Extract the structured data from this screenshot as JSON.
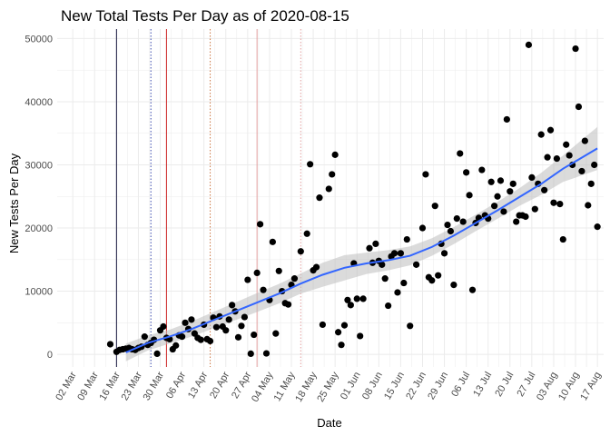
{
  "chart_data": {
    "type": "scatter",
    "title": "New Total Tests Per Day as of 2020-08-15",
    "xlabel": "Date",
    "ylabel": "New Tests Per Day",
    "x_tick_labels": [
      "02 Mar",
      "09 Mar",
      "16 Mar",
      "23 Mar",
      "30 Mar",
      "06 Apr",
      "13 Apr",
      "20 Apr",
      "27 Apr",
      "04 May",
      "11 May",
      "18 May",
      "25 May",
      "01 Jun",
      "08 Jun",
      "15 Jun",
      "22 Jun",
      "29 Jun",
      "06 Jul",
      "13 Jul",
      "20 Jul",
      "27 Jul",
      "03 Aug",
      "10 Aug",
      "17 Aug"
    ],
    "x_tick_dates": [
      "2020-03-02",
      "2020-03-09",
      "2020-03-16",
      "2020-03-23",
      "2020-03-30",
      "2020-04-06",
      "2020-04-13",
      "2020-04-20",
      "2020-04-27",
      "2020-05-04",
      "2020-05-11",
      "2020-05-18",
      "2020-05-25",
      "2020-06-01",
      "2020-06-08",
      "2020-06-15",
      "2020-06-22",
      "2020-06-29",
      "2020-07-06",
      "2020-07-13",
      "2020-07-20",
      "2020-07-27",
      "2020-08-03",
      "2020-08-10",
      "2020-08-17"
    ],
    "y_ticks": [
      0,
      10000,
      20000,
      30000,
      40000,
      50000
    ],
    "xlim": [
      "2020-02-26",
      "2020-08-19"
    ],
    "ylim": [
      -2000,
      51500
    ],
    "grid": true,
    "colors": {
      "points": "#000000",
      "smooth_line": "#3366ff",
      "ribbon": "#bebebe",
      "grid": "#ebebeb"
    },
    "vlines": [
      {
        "date": "2020-03-16",
        "color": "#1a1a40",
        "style": "solid"
      },
      {
        "date": "2020-03-27",
        "color": "#3344aa",
        "style": "dotted"
      },
      {
        "date": "2020-04-01",
        "color": "#cc2222",
        "style": "solid"
      },
      {
        "date": "2020-04-15",
        "color": "#cc7744",
        "style": "dotted"
      },
      {
        "date": "2020-04-30",
        "color": "#e3a0a0",
        "style": "solid"
      },
      {
        "date": "2020-05-14",
        "color": "#e3a0a0",
        "style": "dotted"
      }
    ],
    "points": [
      [
        "2020-03-14",
        1600
      ],
      [
        "2020-03-16",
        400
      ],
      [
        "2020-03-17",
        700
      ],
      [
        "2020-03-18",
        800
      ],
      [
        "2020-03-19",
        900
      ],
      [
        "2020-03-20",
        1000
      ],
      [
        "2020-03-21",
        800
      ],
      [
        "2020-03-22",
        700
      ],
      [
        "2020-03-23",
        1000
      ],
      [
        "2020-03-24",
        1200
      ],
      [
        "2020-03-25",
        2800
      ],
      [
        "2020-03-26",
        1500
      ],
      [
        "2020-03-27",
        1800
      ],
      [
        "2020-03-28",
        2300
      ],
      [
        "2020-03-29",
        100
      ],
      [
        "2020-03-30",
        3800
      ],
      [
        "2020-03-31",
        4400
      ],
      [
        "2020-04-01",
        2600
      ],
      [
        "2020-04-02",
        2400
      ],
      [
        "2020-04-03",
        800
      ],
      [
        "2020-04-04",
        1400
      ],
      [
        "2020-04-05",
        3000
      ],
      [
        "2020-04-06",
        2800
      ],
      [
        "2020-04-07",
        5000
      ],
      [
        "2020-04-08",
        4000
      ],
      [
        "2020-04-09",
        5500
      ],
      [
        "2020-04-10",
        3300
      ],
      [
        "2020-04-11",
        2600
      ],
      [
        "2020-04-12",
        2300
      ],
      [
        "2020-04-13",
        4700
      ],
      [
        "2020-04-14",
        2400
      ],
      [
        "2020-04-15",
        2100
      ],
      [
        "2020-04-16",
        5800
      ],
      [
        "2020-04-17",
        4300
      ],
      [
        "2020-04-18",
        6000
      ],
      [
        "2020-04-19",
        4400
      ],
      [
        "2020-04-20",
        3800
      ],
      [
        "2020-04-21",
        5500
      ],
      [
        "2020-04-22",
        7800
      ],
      [
        "2020-04-23",
        6800
      ],
      [
        "2020-04-24",
        2700
      ],
      [
        "2020-04-25",
        4500
      ],
      [
        "2020-04-26",
        5900
      ],
      [
        "2020-04-27",
        11800
      ],
      [
        "2020-04-28",
        100
      ],
      [
        "2020-04-29",
        3100
      ],
      [
        "2020-04-30",
        12900
      ],
      [
        "2020-05-01",
        20600
      ],
      [
        "2020-05-02",
        10200
      ],
      [
        "2020-05-03",
        150
      ],
      [
        "2020-05-04",
        8600
      ],
      [
        "2020-05-05",
        17800
      ],
      [
        "2020-05-06",
        3300
      ],
      [
        "2020-05-07",
        13200
      ],
      [
        "2020-05-08",
        10000
      ],
      [
        "2020-05-09",
        8100
      ],
      [
        "2020-05-10",
        7900
      ],
      [
        "2020-05-11",
        11000
      ],
      [
        "2020-05-12",
        12000
      ],
      [
        "2020-05-14",
        16300
      ],
      [
        "2020-05-16",
        19100
      ],
      [
        "2020-05-17",
        30100
      ],
      [
        "2020-05-18",
        13300
      ],
      [
        "2020-05-19",
        13800
      ],
      [
        "2020-05-20",
        24800
      ],
      [
        "2020-05-21",
        4700
      ],
      [
        "2020-05-23",
        26200
      ],
      [
        "2020-05-24",
        28500
      ],
      [
        "2020-05-25",
        31600
      ],
      [
        "2020-05-26",
        3500
      ],
      [
        "2020-05-27",
        1500
      ],
      [
        "2020-05-28",
        4600
      ],
      [
        "2020-05-29",
        8600
      ],
      [
        "2020-05-30",
        7800
      ],
      [
        "2020-05-31",
        14400
      ],
      [
        "2020-06-01",
        8800
      ],
      [
        "2020-06-02",
        2900
      ],
      [
        "2020-06-03",
        8800
      ],
      [
        "2020-06-05",
        16800
      ],
      [
        "2020-06-06",
        14500
      ],
      [
        "2020-06-07",
        17500
      ],
      [
        "2020-06-08",
        14800
      ],
      [
        "2020-06-09",
        14200
      ],
      [
        "2020-06-10",
        12000
      ],
      [
        "2020-06-11",
        7700
      ],
      [
        "2020-06-12",
        15500
      ],
      [
        "2020-06-13",
        16000
      ],
      [
        "2020-06-14",
        9800
      ],
      [
        "2020-06-15",
        16000
      ],
      [
        "2020-06-16",
        11300
      ],
      [
        "2020-06-17",
        18200
      ],
      [
        "2020-06-18",
        4500
      ],
      [
        "2020-06-20",
        14200
      ],
      [
        "2020-06-22",
        20000
      ],
      [
        "2020-06-23",
        28500
      ],
      [
        "2020-06-24",
        12200
      ],
      [
        "2020-06-25",
        11700
      ],
      [
        "2020-06-26",
        23500
      ],
      [
        "2020-06-27",
        12500
      ],
      [
        "2020-06-28",
        17500
      ],
      [
        "2020-06-29",
        16000
      ],
      [
        "2020-06-30",
        20500
      ],
      [
        "2020-07-01",
        19500
      ],
      [
        "2020-07-02",
        11000
      ],
      [
        "2020-07-03",
        21500
      ],
      [
        "2020-07-04",
        31800
      ],
      [
        "2020-07-05",
        21000
      ],
      [
        "2020-07-06",
        28800
      ],
      [
        "2020-07-07",
        25200
      ],
      [
        "2020-07-08",
        10200
      ],
      [
        "2020-07-09",
        20800
      ],
      [
        "2020-07-10",
        21600
      ],
      [
        "2020-07-11",
        29200
      ],
      [
        "2020-07-12",
        22000
      ],
      [
        "2020-07-13",
        21500
      ],
      [
        "2020-07-14",
        27300
      ],
      [
        "2020-07-15",
        23500
      ],
      [
        "2020-07-16",
        25000
      ],
      [
        "2020-07-17",
        27500
      ],
      [
        "2020-07-18",
        22600
      ],
      [
        "2020-07-19",
        37200
      ],
      [
        "2020-07-20",
        25800
      ],
      [
        "2020-07-21",
        27000
      ],
      [
        "2020-07-22",
        21000
      ],
      [
        "2020-07-23",
        22000
      ],
      [
        "2020-07-24",
        22000
      ],
      [
        "2020-07-25",
        21800
      ],
      [
        "2020-07-26",
        49000
      ],
      [
        "2020-07-27",
        28000
      ],
      [
        "2020-07-28",
        23000
      ],
      [
        "2020-07-29",
        27000
      ],
      [
        "2020-07-30",
        34800
      ],
      [
        "2020-07-31",
        26000
      ],
      [
        "2020-08-01",
        31200
      ],
      [
        "2020-08-02",
        35500
      ],
      [
        "2020-08-03",
        24000
      ],
      [
        "2020-08-04",
        31000
      ],
      [
        "2020-08-05",
        23800
      ],
      [
        "2020-08-06",
        18200
      ],
      [
        "2020-08-07",
        33200
      ],
      [
        "2020-08-08",
        31500
      ],
      [
        "2020-08-09",
        30000
      ],
      [
        "2020-08-10",
        48400
      ],
      [
        "2020-08-11",
        39200
      ],
      [
        "2020-08-12",
        29000
      ],
      [
        "2020-08-13",
        33800
      ],
      [
        "2020-08-14",
        23600
      ],
      [
        "2020-08-15",
        27000
      ],
      [
        "2020-08-16",
        30000
      ],
      [
        "2020-08-17",
        20200
      ]
    ],
    "smooth_line": [
      [
        "2020-03-19",
        300
      ],
      [
        "2020-03-26",
        1800
      ],
      [
        "2020-04-02",
        2800
      ],
      [
        "2020-04-09",
        4000
      ],
      [
        "2020-04-16",
        5400
      ],
      [
        "2020-04-23",
        6800
      ],
      [
        "2020-04-30",
        8200
      ],
      [
        "2020-05-07",
        9600
      ],
      [
        "2020-05-14",
        11200
      ],
      [
        "2020-05-21",
        12600
      ],
      [
        "2020-05-28",
        13700
      ],
      [
        "2020-06-04",
        14400
      ],
      [
        "2020-06-11",
        14900
      ],
      [
        "2020-06-18",
        15600
      ],
      [
        "2020-06-25",
        17000
      ],
      [
        "2020-07-02",
        18800
      ],
      [
        "2020-07-09",
        20800
      ],
      [
        "2020-07-16",
        22800
      ],
      [
        "2020-07-23",
        24900
      ],
      [
        "2020-07-30",
        27000
      ],
      [
        "2020-08-06",
        29400
      ],
      [
        "2020-08-17",
        32600
      ]
    ],
    "ribbon_halfwidth": [
      [
        "2020-03-19",
        1400
      ],
      [
        "2020-03-26",
        1200
      ],
      [
        "2020-04-02",
        1100
      ],
      [
        "2020-04-16",
        1300
      ],
      [
        "2020-04-30",
        1500
      ],
      [
        "2020-05-14",
        1600
      ],
      [
        "2020-05-21",
        1900
      ],
      [
        "2020-05-28",
        2000
      ],
      [
        "2020-06-04",
        1700
      ],
      [
        "2020-06-18",
        1500
      ],
      [
        "2020-06-25",
        1400
      ],
      [
        "2020-07-09",
        1300
      ],
      [
        "2020-07-23",
        1400
      ],
      [
        "2020-08-06",
        2100
      ],
      [
        "2020-08-17",
        3400
      ]
    ]
  }
}
